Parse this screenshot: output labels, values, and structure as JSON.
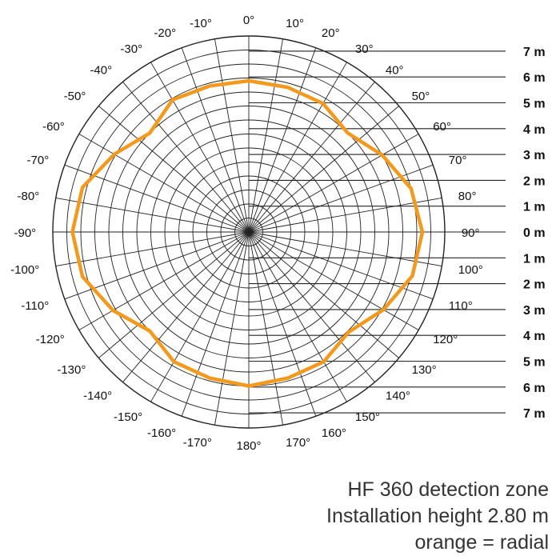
{
  "chart_data": {
    "type": "polar",
    "angle_unit": "degrees",
    "angle_tick_labels": [
      "0°",
      "10°",
      "20°",
      "30°",
      "40°",
      "50°",
      "60°",
      "70°",
      "80°",
      "90°",
      "100°",
      "110°",
      "120°",
      "130°",
      "140°",
      "150°",
      "160°",
      "170°",
      "180°",
      "-170°",
      "-160°",
      "-150°",
      "-140°",
      "-130°",
      "-120°",
      "-110°",
      "-100°",
      "-90°",
      "-80°",
      "-70°",
      "-60°",
      "-50°",
      "-40°",
      "-30°",
      "-20°",
      "-10°"
    ],
    "angle_tick_values": [
      0,
      10,
      20,
      30,
      40,
      50,
      60,
      70,
      80,
      90,
      100,
      110,
      120,
      130,
      140,
      150,
      160,
      170,
      180,
      -170,
      -160,
      -150,
      -140,
      -130,
      -120,
      -110,
      -100,
      -90,
      -80,
      -70,
      -60,
      -50,
      -40,
      -30,
      -20,
      -10
    ],
    "distance_labels_top": [
      "7 m",
      "6 m",
      "5 m",
      "4 m",
      "3 m",
      "2 m",
      "1 m"
    ],
    "distance_label_center": "0 m",
    "distance_labels_bottom": [
      "1 m",
      "2 m",
      "3 m",
      "4 m",
      "5 m",
      "6 m",
      "7 m"
    ],
    "radial_range_m": [
      0,
      7
    ],
    "grid": true,
    "series": [
      {
        "color": "#F39A1E",
        "points": [
          {
            "angle": 0,
            "r": 5.4
          },
          {
            "angle": 15,
            "r": 5.35
          },
          {
            "angle": 30,
            "r": 5.3
          },
          {
            "angle": 45,
            "r": 5.0
          },
          {
            "angle": 60,
            "r": 5.5
          },
          {
            "angle": 75,
            "r": 6.0
          },
          {
            "angle": 90,
            "r": 6.2
          },
          {
            "angle": 105,
            "r": 6.05
          },
          {
            "angle": 120,
            "r": 5.55
          },
          {
            "angle": 135,
            "r": 5.05
          },
          {
            "angle": 150,
            "r": 5.35
          },
          {
            "angle": 165,
            "r": 5.4
          },
          {
            "angle": 180,
            "r": 5.5
          },
          {
            "angle": -165,
            "r": 5.4
          },
          {
            "angle": -150,
            "r": 5.35
          },
          {
            "angle": -135,
            "r": 5.0
          },
          {
            "angle": -120,
            "r": 5.6
          },
          {
            "angle": -105,
            "r": 6.15
          },
          {
            "angle": -90,
            "r": 6.3
          },
          {
            "angle": -75,
            "r": 6.15
          },
          {
            "angle": -60,
            "r": 5.55
          },
          {
            "angle": -45,
            "r": 5.0
          },
          {
            "angle": -30,
            "r": 5.45
          },
          {
            "angle": -15,
            "r": 5.4
          }
        ]
      }
    ]
  },
  "caption": {
    "line1": "HF 360 detection zone",
    "line2": "Installation height 2.80 m",
    "line3": "orange = radial"
  },
  "colors": {
    "grid": "#222222",
    "series": "#F39A1E",
    "caption": "#333333"
  }
}
